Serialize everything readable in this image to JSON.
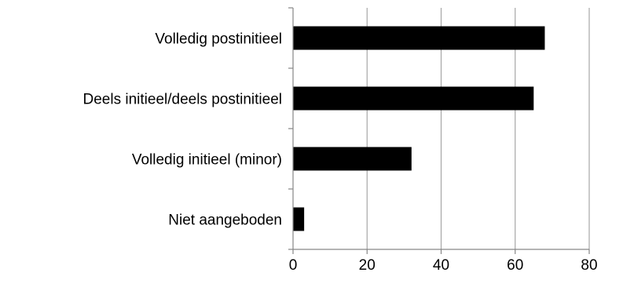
{
  "chart_data": {
    "type": "bar",
    "orientation": "horizontal",
    "categories": [
      "Volledig postinitieel",
      "Deels initieel/deels postinitieel",
      "Volledig initieel (minor)",
      "Niet aangeboden"
    ],
    "values": [
      68,
      65,
      32,
      3
    ],
    "xlim": [
      0,
      80
    ],
    "xticks": [
      "0",
      "20",
      "40",
      "60",
      "80"
    ],
    "grid": "vertical",
    "legend": "none",
    "title": "",
    "xlabel": "",
    "ylabel": "",
    "bar_color": "#000000",
    "grid_color": "#a6a6a6",
    "axis_color": "#868686"
  }
}
